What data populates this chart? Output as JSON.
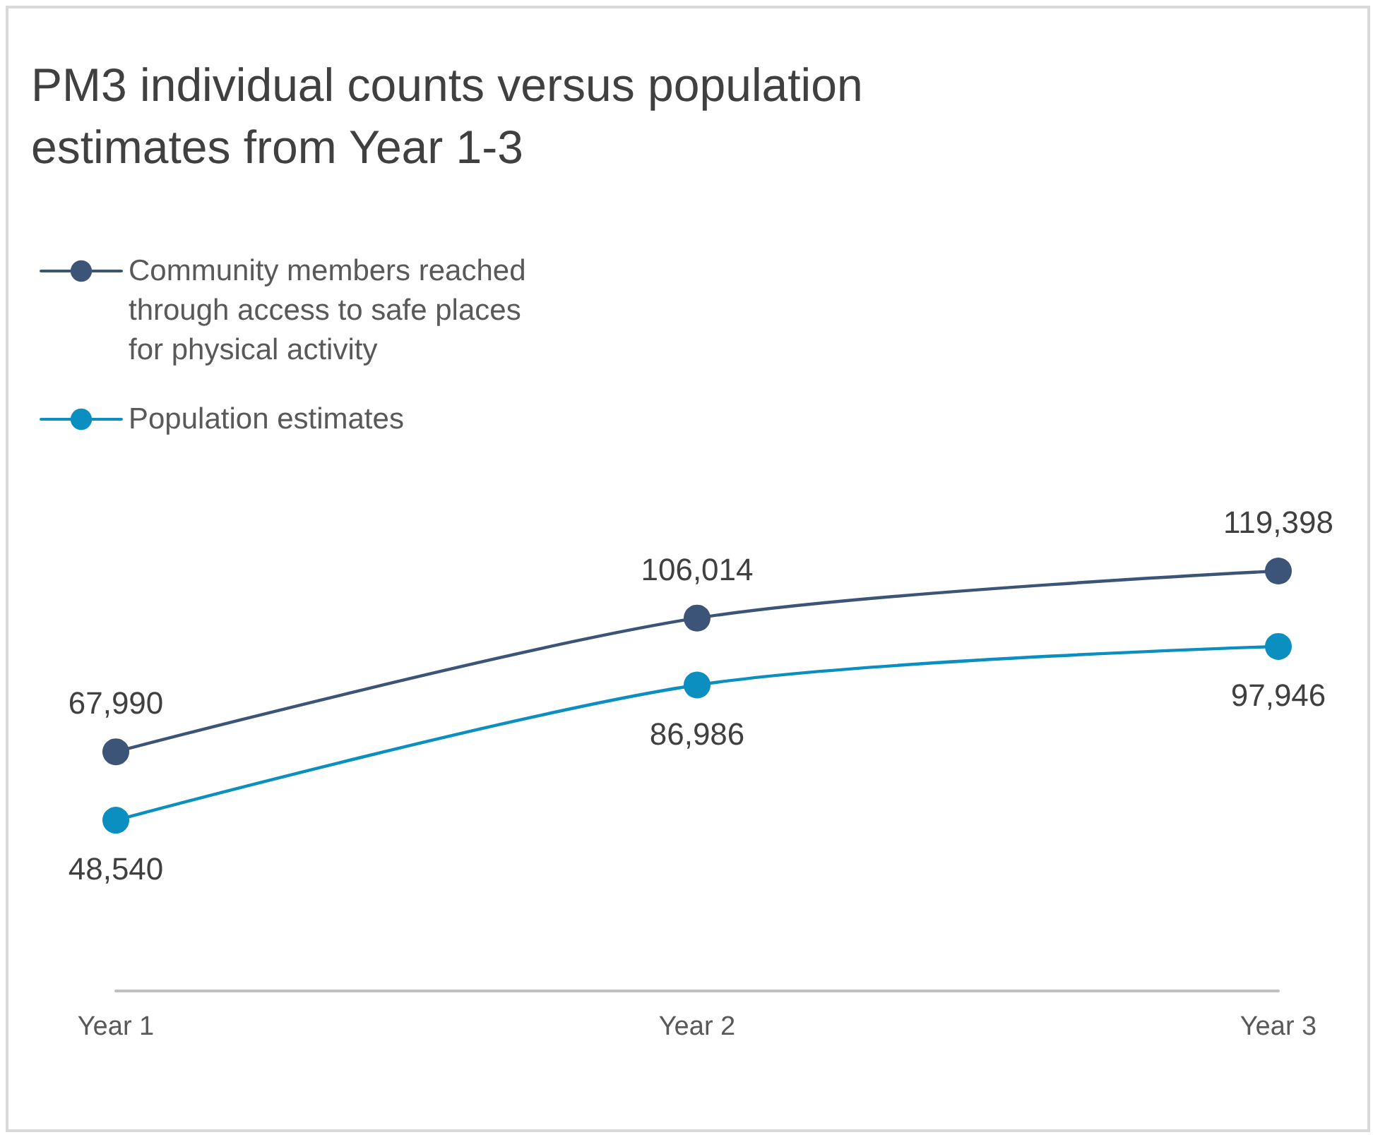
{
  "chart_data": {
    "type": "line",
    "title": "PM3 individual counts versus population estimates from Year 1-3",
    "categories": [
      "Year 1",
      "Year 2",
      "Year 3"
    ],
    "series": [
      {
        "name": "Community members reached through access to safe places for physical activity",
        "color": "#3b5478",
        "values": [
          67990,
          106014,
          119398
        ],
        "value_labels": [
          "67,990",
          "106,014",
          "119,398"
        ]
      },
      {
        "name": "Population estimates",
        "color": "#0b8ec0",
        "values": [
          48540,
          86986,
          97946
        ],
        "value_labels": [
          "48,540",
          "86,986",
          "97,946"
        ]
      }
    ],
    "legend": "top left",
    "marker": "circle",
    "line_style": "solid",
    "grid": false,
    "tick_labels": "x"
  }
}
